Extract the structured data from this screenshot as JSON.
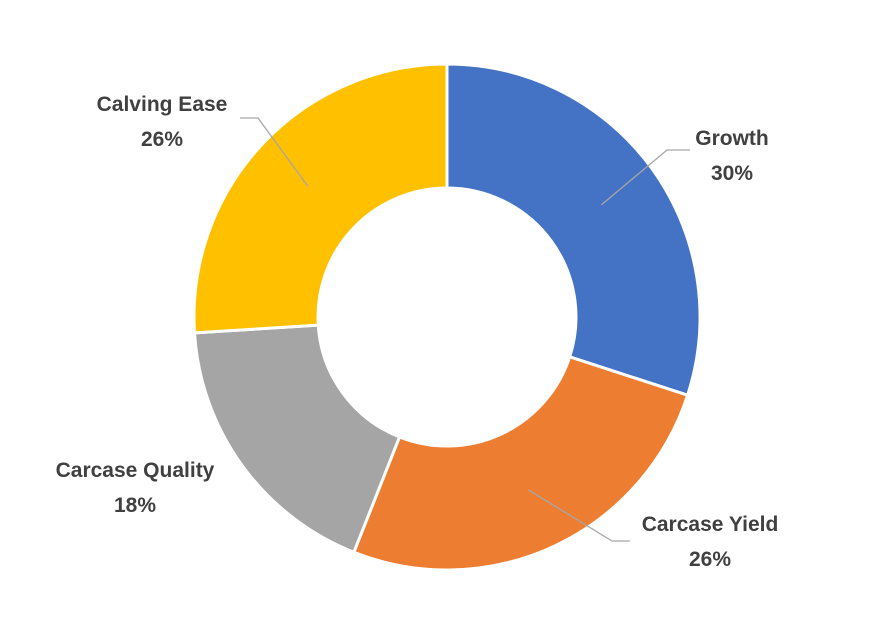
{
  "chart_data": {
    "type": "pie",
    "variant": "donut",
    "title": "",
    "categories": [
      "Growth",
      "Carcase Yield",
      "Carcase Quality",
      "Calving Ease"
    ],
    "values": [
      30,
      26,
      18,
      26
    ],
    "labels": [
      "30%",
      "26%",
      "18%",
      "26%"
    ],
    "colors": [
      "#4472C4",
      "#ED7D31",
      "#A5A5A5",
      "#FFC000"
    ],
    "leader_line_color": "#A6A6A6",
    "legend": "none",
    "data_labels": "outside with leader lines"
  }
}
